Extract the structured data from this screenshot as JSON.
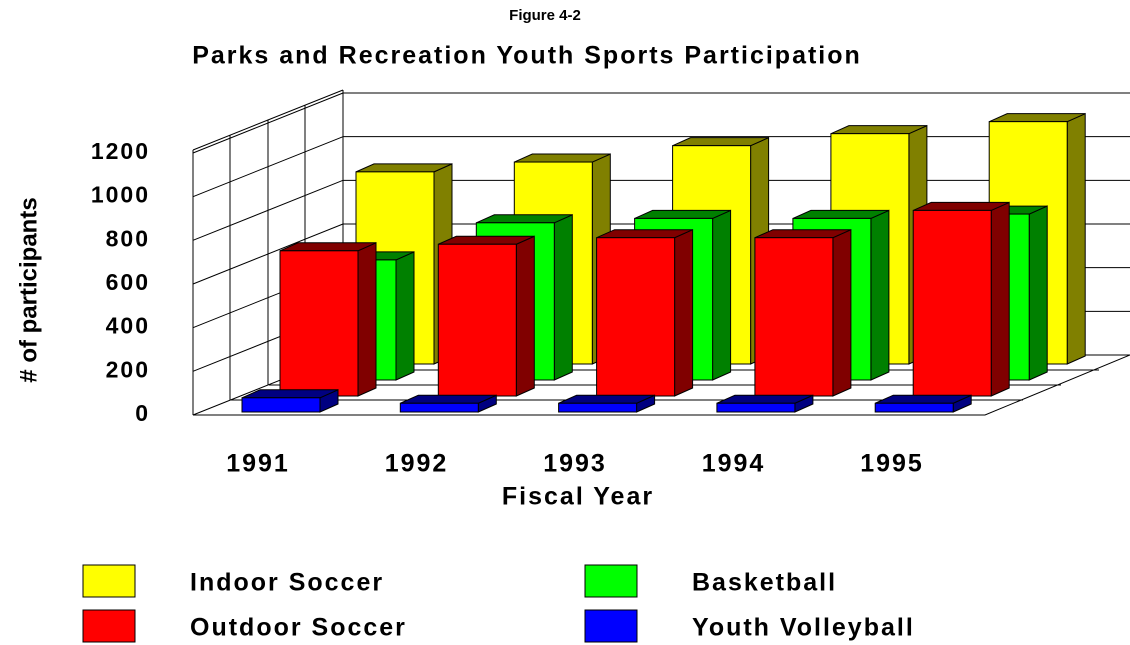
{
  "chart_data": {
    "type": "bar3d",
    "caption": "Figure 4-2",
    "title": "Parks and Recreation Youth Sports Participation",
    "x_label": "Fiscal Year",
    "y_label": "# of participants",
    "categories": [
      "1991",
      "1992",
      "1993",
      "1994",
      "1995"
    ],
    "series": [
      {
        "name": "Indoor Soccer",
        "color": "#ffff00",
        "values": [
          880,
          925,
          1000,
          1055,
          1110
        ]
      },
      {
        "name": "Outdoor Soccer",
        "color": "#ff0000",
        "values": [
          665,
          695,
          725,
          725,
          850
        ]
      },
      {
        "name": "Basketball",
        "color": "#00ff00",
        "values": [
          550,
          720,
          740,
          740,
          760
        ]
      },
      {
        "name": "Youth Volleyball",
        "color": "#0000ff",
        "values": [
          65,
          40,
          40,
          40,
          40
        ]
      }
    ],
    "ylim": [
      0,
      1200
    ],
    "yticks": [
      0,
      200,
      400,
      600,
      800,
      1000,
      1200
    ],
    "grid": true,
    "legend": "bottom"
  }
}
